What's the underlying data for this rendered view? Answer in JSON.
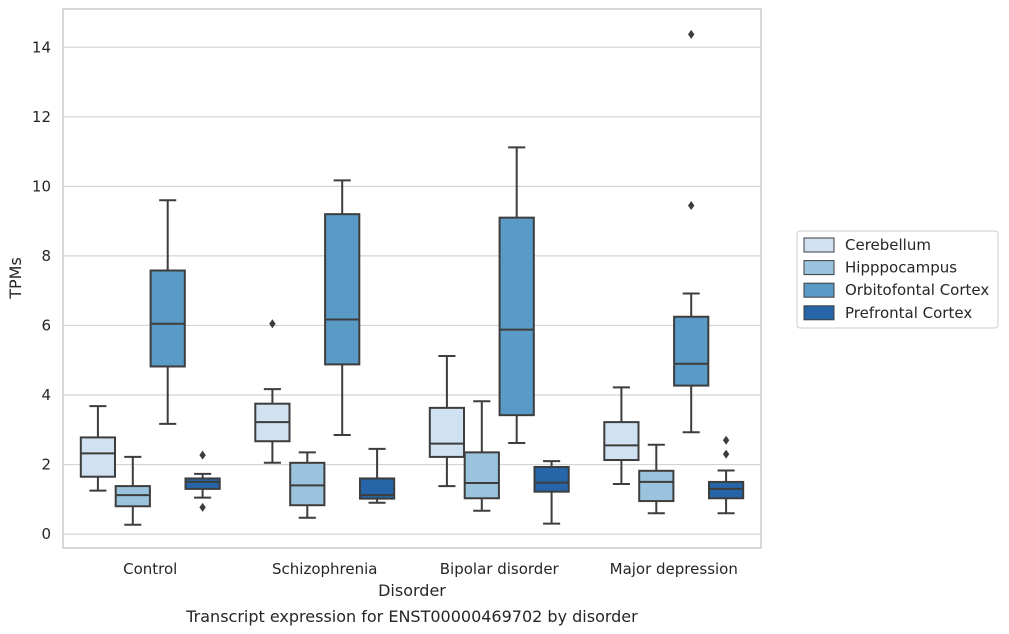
{
  "chart_data": {
    "type": "box",
    "caption": "Transcript expression for ENST00000469702 by disorder",
    "xlabel": "Disorder",
    "ylabel": "TPMs",
    "ylim": [
      -0.4,
      15.1
    ],
    "yticks": [
      0,
      2,
      4,
      6,
      8,
      10,
      12,
      14
    ],
    "grid": "horizontal",
    "legend_position": "right",
    "categories": [
      "Control",
      "Schizophrenia",
      "Bipolar disorder",
      "Major depression"
    ],
    "series": [
      {
        "name": "Cerebellum",
        "color": "#d0e1f2",
        "boxes": [
          {
            "whisker_low": 1.25,
            "q1": 1.65,
            "median": 2.32,
            "q3": 2.78,
            "whisker_high": 3.68,
            "outliers": []
          },
          {
            "whisker_low": 2.05,
            "q1": 2.67,
            "median": 3.22,
            "q3": 3.75,
            "whisker_high": 4.17,
            "outliers": [
              6.05
            ]
          },
          {
            "whisker_low": 1.38,
            "q1": 2.22,
            "median": 2.6,
            "q3": 3.63,
            "whisker_high": 5.12,
            "outliers": []
          },
          {
            "whisker_low": 1.44,
            "q1": 2.13,
            "median": 2.55,
            "q3": 3.22,
            "whisker_high": 4.22,
            "outliers": []
          }
        ]
      },
      {
        "name": "Hipppocampus",
        "color": "#9ac3dd",
        "boxes": [
          {
            "whisker_low": 0.27,
            "q1": 0.8,
            "median": 1.12,
            "q3": 1.38,
            "whisker_high": 2.22,
            "outliers": []
          },
          {
            "whisker_low": 0.47,
            "q1": 0.83,
            "median": 1.4,
            "q3": 2.05,
            "whisker_high": 2.35,
            "outliers": []
          },
          {
            "whisker_low": 0.67,
            "q1": 1.03,
            "median": 1.47,
            "q3": 2.35,
            "whisker_high": 3.82,
            "outliers": []
          },
          {
            "whisker_low": 0.6,
            "q1": 0.95,
            "median": 1.5,
            "q3": 1.82,
            "whisker_high": 2.57,
            "outliers": []
          }
        ]
      },
      {
        "name": "Orbitofontal Cortex",
        "color": "#5a9ac6",
        "boxes": [
          {
            "whisker_low": 3.17,
            "q1": 4.82,
            "median": 6.05,
            "q3": 7.58,
            "whisker_high": 9.6,
            "outliers": []
          },
          {
            "whisker_low": 2.85,
            "q1": 4.88,
            "median": 6.17,
            "q3": 9.2,
            "whisker_high": 10.17,
            "outliers": []
          },
          {
            "whisker_low": 2.62,
            "q1": 3.42,
            "median": 5.88,
            "q3": 9.1,
            "whisker_high": 11.12,
            "outliers": []
          },
          {
            "whisker_low": 2.93,
            "q1": 4.27,
            "median": 4.9,
            "q3": 6.25,
            "whisker_high": 6.92,
            "outliers": [
              9.45,
              14.37
            ]
          }
        ]
      },
      {
        "name": "Prefrontal Cortex",
        "color": "#2565a8",
        "boxes": [
          {
            "whisker_low": 1.05,
            "q1": 1.3,
            "median": 1.5,
            "q3": 1.6,
            "whisker_high": 1.73,
            "outliers": [
              0.77,
              2.27
            ]
          },
          {
            "whisker_low": 0.9,
            "q1": 1.02,
            "median": 1.12,
            "q3": 1.6,
            "whisker_high": 2.45,
            "outliers": []
          },
          {
            "whisker_low": 0.3,
            "q1": 1.22,
            "median": 1.48,
            "q3": 1.93,
            "whisker_high": 2.1,
            "outliers": []
          },
          {
            "whisker_low": 0.6,
            "q1": 1.03,
            "median": 1.3,
            "q3": 1.5,
            "whisker_high": 1.83,
            "outliers": [
              2.3,
              2.7
            ]
          }
        ]
      }
    ]
  }
}
